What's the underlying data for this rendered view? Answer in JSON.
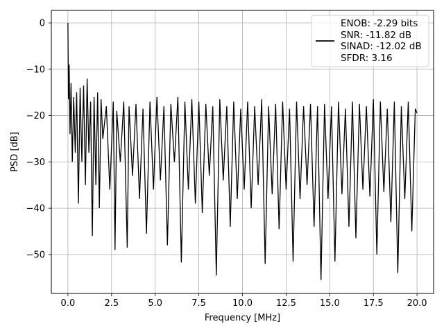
{
  "chart_data": {
    "type": "line",
    "title": "",
    "xlabel": "Frequency [MHz]",
    "ylabel": "PSD [dB]",
    "xlim": [
      -0.95,
      20.95
    ],
    "ylim": [
      -58.4,
      2.7
    ],
    "xticks": [
      0,
      2.5,
      5,
      7.5,
      10,
      12.5,
      15,
      17.5,
      20
    ],
    "xtick_labels": [
      "0.0",
      "2.5",
      "5.0",
      "7.5",
      "10.0",
      "12.5",
      "15.0",
      "17.5",
      "20.0"
    ],
    "yticks": [
      0,
      -10,
      -20,
      -30,
      -40,
      -50
    ],
    "ytick_labels": [
      "0",
      "−10",
      "−20",
      "−30",
      "−40",
      "−50"
    ],
    "grid": true,
    "legend_position": "top-right",
    "legend": {
      "lines": [
        "ENOB: -2.29 bits",
        "SNR: -11.82 dB",
        "SINAD: -12.02 dB",
        "SFDR: 3.16"
      ]
    },
    "series_color": "#000000",
    "series": [
      {
        "values_note": "noise floor approx -27 dB with spikes",
        "x": [
          0.0,
          0.03,
          0.07,
          0.12,
          0.18,
          0.25,
          0.33,
          0.42,
          0.5,
          0.6,
          0.7,
          0.8,
          0.9,
          1.0,
          1.1,
          1.2,
          1.3,
          1.4,
          1.5,
          1.6,
          1.7,
          1.8,
          1.9,
          2.0,
          2.2,
          2.4,
          2.6,
          2.7,
          2.8,
          3.0,
          3.2,
          3.4,
          3.5,
          3.7,
          3.9,
          4.1,
          4.3,
          4.5,
          4.7,
          4.9,
          5.1,
          5.3,
          5.5,
          5.7,
          5.9,
          6.1,
          6.3,
          6.5,
          6.7,
          6.9,
          7.1,
          7.3,
          7.5,
          7.7,
          7.9,
          8.1,
          8.3,
          8.5,
          8.7,
          8.9,
          9.1,
          9.3,
          9.5,
          9.7,
          9.9,
          10.1,
          10.3,
          10.5,
          10.7,
          10.9,
          11.1,
          11.3,
          11.5,
          11.7,
          11.9,
          12.1,
          12.3,
          12.5,
          12.7,
          12.9,
          13.1,
          13.3,
          13.5,
          13.7,
          13.9,
          14.1,
          14.3,
          14.5,
          14.7,
          14.9,
          15.1,
          15.3,
          15.5,
          15.7,
          15.9,
          16.1,
          16.3,
          16.5,
          16.7,
          16.9,
          17.1,
          17.3,
          17.5,
          17.7,
          17.9,
          18.1,
          18.3,
          18.5,
          18.7,
          18.9,
          19.1,
          19.3,
          19.5,
          19.7,
          19.9,
          20.0
        ],
        "values": [
          0.0,
          -16.5,
          -9.0,
          -24.0,
          -13.0,
          -30.0,
          -16.0,
          -28.0,
          -15.0,
          -39.0,
          -14.0,
          -30.0,
          -13.5,
          -35.0,
          -12.0,
          -28.0,
          -17.0,
          -46.0,
          -16.0,
          -35.0,
          -15.0,
          -40.0,
          -16.5,
          -25.0,
          -18.0,
          -36.0,
          -17.0,
          -49.0,
          -19.0,
          -30.0,
          -17.0,
          -48.5,
          -18.0,
          -33.0,
          -17.5,
          -38.0,
          -18.5,
          -45.5,
          -17.0,
          -36.0,
          -16.0,
          -34.0,
          -18.0,
          -48.0,
          -17.5,
          -30.0,
          -16.0,
          -51.7,
          -17.0,
          -36.0,
          -16.5,
          -39.0,
          -17.0,
          -41.0,
          -17.5,
          -33.0,
          -18.0,
          -54.5,
          -16.5,
          -34.0,
          -18.0,
          -44.0,
          -17.0,
          -38.0,
          -18.5,
          -36.0,
          -17.0,
          -40.0,
          -18.0,
          -35.0,
          -16.5,
          -52.0,
          -18.0,
          -37.0,
          -17.5,
          -44.5,
          -17.0,
          -36.0,
          -18.5,
          -51.5,
          -17.0,
          -38.0,
          -18.0,
          -35.0,
          -17.5,
          -44.0,
          -18.0,
          -55.5,
          -17.5,
          -38.0,
          -18.0,
          -51.5,
          -17.0,
          -37.0,
          -18.5,
          -44.0,
          -17.0,
          -46.5,
          -17.5,
          -36.0,
          -18.0,
          -37.5,
          -16.5,
          -50.0,
          -17.0,
          -36.5,
          -18.5,
          -43.0,
          -17.0,
          -54.0,
          -18.0,
          -38.0,
          -17.0,
          -45.0,
          -18.5,
          -19.5
        ]
      }
    ]
  }
}
